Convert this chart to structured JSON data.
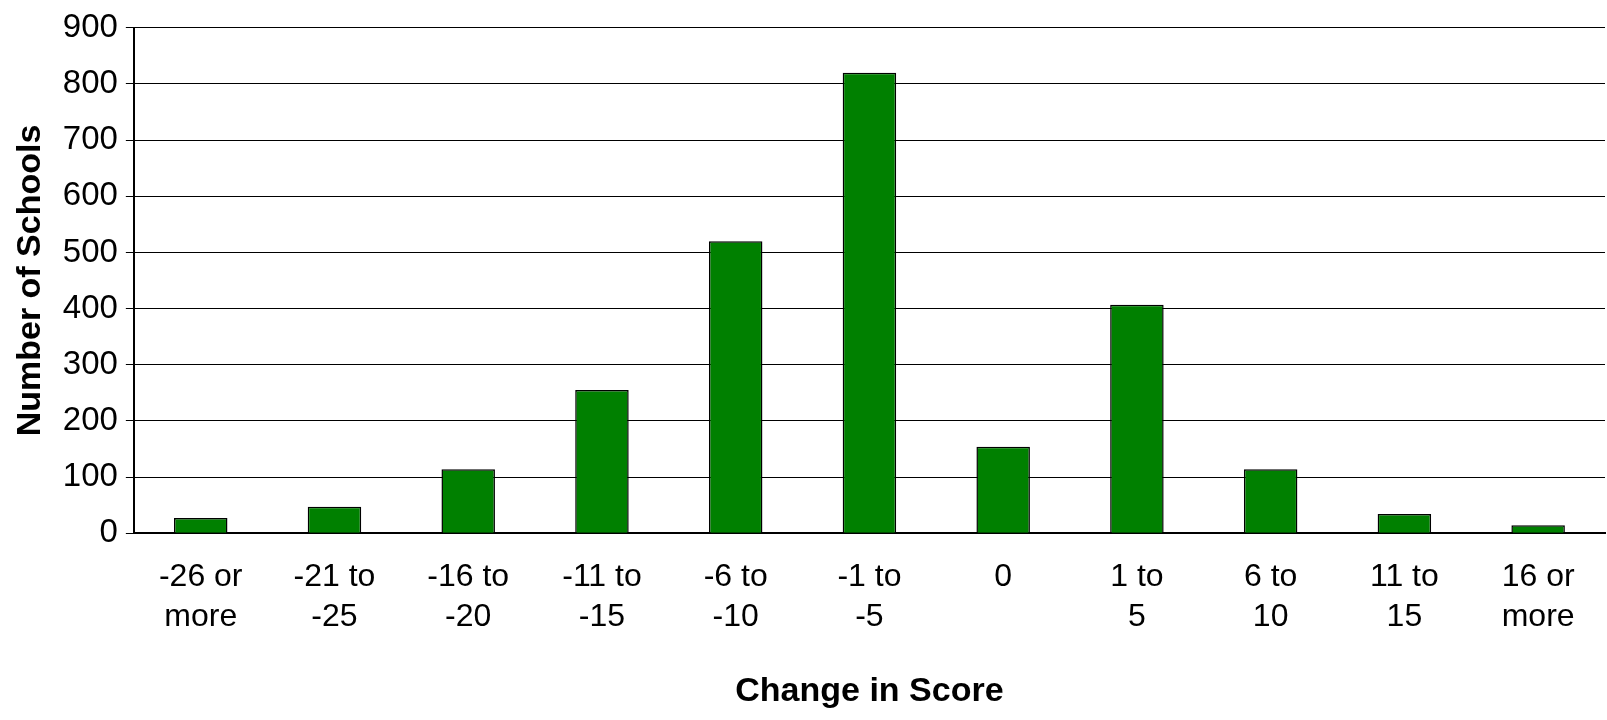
{
  "chart_data": {
    "type": "bar",
    "xlabel": "Change in Score",
    "ylabel": "Number of Schools",
    "categories": [
      "-26 or more",
      "-21 to -25",
      "-16 to -20",
      "-11 to -15",
      "-6 to -10",
      "-1 to -5",
      "0",
      "1 to 5",
      "6 to 10",
      "11 to 15",
      "16 or more"
    ],
    "values": [
      27,
      47,
      114,
      255,
      520,
      820,
      154,
      407,
      114,
      34,
      14
    ],
    "color": "#008000",
    "ylim": [
      0,
      900
    ],
    "yticks": [
      0,
      100,
      200,
      300,
      400,
      500,
      600,
      700,
      800,
      900
    ],
    "grid": "y",
    "legend": false
  }
}
